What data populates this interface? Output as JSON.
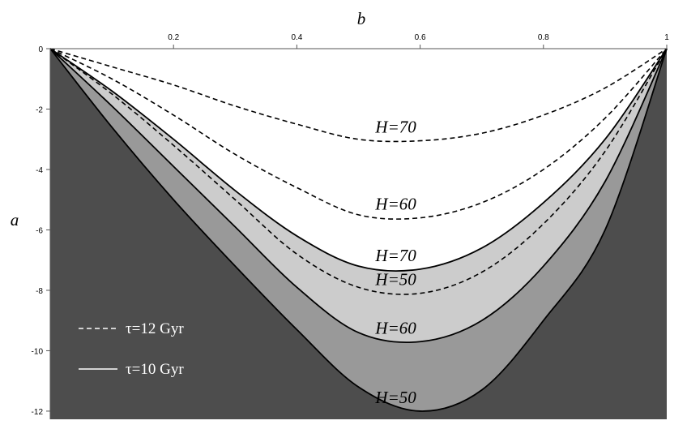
{
  "chart_data": {
    "type": "line",
    "xlabel": "b",
    "ylabel": "a",
    "x": [
      0,
      0.1,
      0.2,
      0.3,
      0.4,
      0.5,
      0.6,
      0.7,
      0.8,
      0.9,
      1
    ],
    "xlim": [
      0,
      1
    ],
    "xticks": [
      0.2,
      0.4,
      0.6,
      0.8,
      1
    ],
    "ylim": [
      -12.27,
      0
    ],
    "yticks": [
      0,
      -2,
      -4,
      -6,
      -8,
      -10,
      -12
    ],
    "legend": [
      {
        "name": "τ=12  Gyr",
        "style": "dashed"
      },
      {
        "name": "τ=10 Gyr",
        "style": "solid"
      }
    ],
    "series": [
      {
        "name": "H=70",
        "style": "solid",
        "color": "#000000",
        "fill": "#cccccc",
        "values": [
          0,
          -1.4,
          -3.0,
          -4.7,
          -6.2,
          -7.2,
          -7.3,
          -6.6,
          -5.1,
          -3.0,
          0
        ]
      },
      {
        "name": "H=60",
        "style": "solid",
        "color": "#000000",
        "fill": "#999999",
        "values": [
          0,
          -1.9,
          -3.9,
          -5.9,
          -7.9,
          -9.4,
          -9.7,
          -9.0,
          -7.2,
          -4.4,
          0
        ]
      },
      {
        "name": "H=50",
        "style": "solid",
        "color": "#000000",
        "fill": "#4d4d4d",
        "values": [
          0,
          -2.6,
          -5.0,
          -7.2,
          -9.3,
          -11.2,
          -12.0,
          -11.3,
          -9.0,
          -6.0,
          0
        ]
      },
      {
        "name": "H=50",
        "style": "dashed",
        "color": "#000000",
        "values": [
          0,
          -1.5,
          -3.2,
          -5.0,
          -6.8,
          -7.9,
          -8.1,
          -7.4,
          -5.8,
          -3.4,
          0
        ]
      },
      {
        "name": "H=60",
        "style": "dashed",
        "color": "#000000",
        "values": [
          0,
          -1.0,
          -2.2,
          -3.5,
          -4.6,
          -5.5,
          -5.6,
          -5.1,
          -4.0,
          -2.3,
          0
        ]
      },
      {
        "name": "H=70",
        "style": "dashed",
        "color": "#000000",
        "values": [
          0,
          -0.6,
          -1.2,
          -1.9,
          -2.5,
          -3.0,
          -3.05,
          -2.8,
          -2.2,
          -1.3,
          0
        ]
      }
    ]
  }
}
